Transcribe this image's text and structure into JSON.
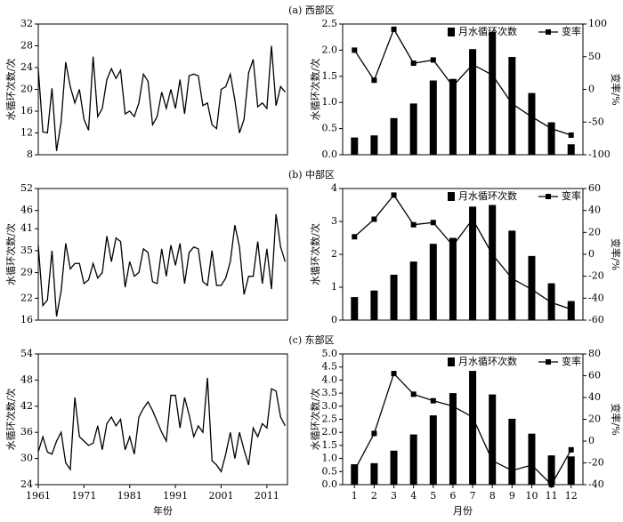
{
  "chart_data": [
    {
      "type": "line",
      "title": "(a) 西部区",
      "ylabel": "水循环次数/次",
      "color": "#000000",
      "x": [
        1961,
        1962,
        1963,
        1964,
        1965,
        1966,
        1967,
        1968,
        1969,
        1970,
        1971,
        1972,
        1973,
        1974,
        1975,
        1976,
        1977,
        1978,
        1979,
        1980,
        1981,
        1982,
        1983,
        1984,
        1985,
        1986,
        1987,
        1988,
        1989,
        1990,
        1991,
        1992,
        1993,
        1994,
        1995,
        1996,
        1997,
        1998,
        1999,
        2000,
        2001,
        2002,
        2003,
        2004,
        2005,
        2006,
        2007,
        2008,
        2009,
        2010,
        2011,
        2012,
        2013,
        2014,
        2015
      ],
      "values": [
        23.8,
        12.2,
        12,
        20.2,
        8.7,
        14,
        25,
        20.5,
        17.5,
        20,
        14.5,
        12.5,
        26,
        15,
        16.5,
        21.8,
        23.8,
        22,
        23.5,
        15.5,
        16,
        15,
        17.5,
        22.8,
        21.5,
        13.5,
        15,
        19.5,
        16.5,
        20,
        16.5,
        21.8,
        15.5,
        22.5,
        22.8,
        22.5,
        17,
        17.5,
        13.5,
        12.8,
        20,
        20.5,
        22.8,
        18,
        12,
        14.5,
        23,
        25.5,
        16.8,
        17.5,
        16.5,
        28,
        17,
        20.5,
        19.5
      ],
      "xlim": [
        1961,
        2015.5
      ],
      "ylim": [
        8,
        32
      ],
      "yticks": [
        8,
        12,
        16,
        20,
        24,
        28,
        32
      ]
    },
    {
      "type": "bar_line",
      "ylabel": "水循环次数/次",
      "y2label": "变率/%",
      "x": [
        1,
        2,
        3,
        4,
        5,
        6,
        7,
        8,
        9,
        10,
        11,
        12
      ],
      "series": [
        {
          "name": "月水循环次数",
          "color": "#000000",
          "values": [
            0.33,
            0.37,
            0.7,
            0.98,
            1.42,
            1.45,
            2.02,
            2.35,
            1.87,
            1.18,
            0.62,
            0.2
          ]
        },
        {
          "name": "变率",
          "color": "#000000",
          "axis": "y2",
          "values": [
            60,
            14,
            92,
            40,
            45,
            5,
            38,
            22,
            -22,
            -42,
            -60,
            -70
          ]
        }
      ],
      "xlim": [
        0.4,
        12.6
      ],
      "ylim": [
        0,
        2.5
      ],
      "yticks": [
        {
          "value": 0,
          "label": "0.0"
        },
        {
          "value": 0.5,
          "label": "0.5"
        },
        {
          "value": 1,
          "label": "1.0"
        },
        {
          "value": 1.5,
          "label": "1.5"
        },
        {
          "value": 2,
          "label": "2.0"
        },
        {
          "value": 2.5,
          "label": "2.5"
        }
      ],
      "y2lim": [
        -100,
        100
      ],
      "y2ticks": [
        -100,
        -50,
        0,
        50,
        100
      ]
    },
    {
      "type": "line",
      "title": "(b) 中部区",
      "ylabel": "水循环次数/次",
      "color": "#000000",
      "x": [
        1961,
        1962,
        1963,
        1964,
        1965,
        1966,
        1967,
        1968,
        1969,
        1970,
        1971,
        1972,
        1973,
        1974,
        1975,
        1976,
        1977,
        1978,
        1979,
        1980,
        1981,
        1982,
        1983,
        1984,
        1985,
        1986,
        1987,
        1988,
        1989,
        1990,
        1991,
        1992,
        1993,
        1994,
        1995,
        1996,
        1997,
        1998,
        1999,
        2000,
        2001,
        2002,
        2003,
        2004,
        2005,
        2006,
        2007,
        2008,
        2009,
        2010,
        2011,
        2012,
        2013,
        2014,
        2015
      ],
      "values": [
        36.5,
        20,
        21.5,
        35,
        17,
        24,
        37,
        30,
        31.5,
        31.5,
        26,
        27,
        31.5,
        27.5,
        29,
        39,
        32,
        38.5,
        37.5,
        25,
        32,
        28,
        29,
        35.5,
        34.5,
        26.5,
        26,
        35.5,
        28,
        36.5,
        31,
        37,
        26,
        34.5,
        36,
        35.5,
        26.5,
        25.5,
        35,
        25.5,
        25.5,
        27.5,
        32,
        42,
        36,
        23,
        28,
        28,
        37.5,
        26,
        35.5,
        24.5,
        45,
        36,
        32
      ],
      "xlim": [
        1961,
        2015.5
      ],
      "ylim": [
        16,
        52
      ],
      "yticks": [
        16,
        22,
        29,
        35,
        41,
        46,
        52
      ]
    },
    {
      "type": "bar_line",
      "ylabel": "水循环次数/次",
      "y2label": "变率/%",
      "x": [
        1,
        2,
        3,
        4,
        5,
        6,
        7,
        8,
        9,
        10,
        11,
        12
      ],
      "series": [
        {
          "name": "月水循环次数",
          "color": "#000000",
          "values": [
            0.7,
            0.9,
            1.38,
            1.78,
            2.32,
            2.5,
            3.45,
            3.5,
            2.72,
            1.95,
            1.12,
            0.58
          ]
        },
        {
          "name": "变率",
          "color": "#000000",
          "axis": "y2",
          "values": [
            16,
            32,
            54,
            27,
            29,
            8,
            32,
            0,
            -22,
            -32,
            -44,
            -50
          ]
        }
      ],
      "xlim": [
        0.4,
        12.6
      ],
      "ylim": [
        0,
        4
      ],
      "yticks": [
        0,
        1,
        2,
        3,
        4
      ],
      "y2lim": [
        -60,
        60
      ],
      "y2ticks": [
        -60,
        -40,
        -20,
        0,
        20,
        40,
        60
      ]
    },
    {
      "type": "line",
      "title": "(c) 东部区",
      "ylabel": "水循环次数/次",
      "xlabel": "年份",
      "color": "#000000",
      "x": [
        1961,
        1962,
        1963,
        1964,
        1965,
        1966,
        1967,
        1968,
        1969,
        1970,
        1971,
        1972,
        1973,
        1974,
        1975,
        1976,
        1977,
        1978,
        1979,
        1980,
        1981,
        1982,
        1983,
        1984,
        1985,
        1986,
        1987,
        1988,
        1989,
        1990,
        1991,
        1992,
        1993,
        1994,
        1995,
        1996,
        1997,
        1998,
        1999,
        2000,
        2001,
        2002,
        2003,
        2004,
        2005,
        2006,
        2007,
        2008,
        2009,
        2010,
        2011,
        2012,
        2013,
        2014,
        2015
      ],
      "values": [
        31.5,
        35,
        31.5,
        31,
        34,
        36,
        29,
        27.5,
        44,
        35,
        34,
        33,
        33.5,
        37.5,
        32,
        38,
        39.5,
        37.5,
        39,
        32,
        35,
        31,
        39.5,
        41.5,
        43,
        41,
        38.5,
        36,
        34,
        44.5,
        44.5,
        37,
        44,
        40,
        35,
        37.5,
        36,
        48.5,
        29.5,
        28.5,
        27,
        31,
        36,
        30,
        36,
        32,
        28.5,
        37,
        35,
        38,
        37,
        46,
        45.5,
        39.5,
        37.5
      ],
      "xlim": [
        1961,
        2015.5
      ],
      "xticks": [
        1961,
        1971,
        1981,
        1991,
        2001,
        2011
      ],
      "ylim": [
        24,
        54
      ],
      "yticks": [
        24,
        30,
        36,
        42,
        48,
        54
      ]
    },
    {
      "type": "bar_line",
      "ylabel": "水循环次数/次",
      "y2label": "变率/%",
      "xlabel": "月份",
      "x": [
        1,
        2,
        3,
        4,
        5,
        6,
        7,
        8,
        9,
        10,
        11,
        12
      ],
      "series": [
        {
          "name": "月水循环次数",
          "color": "#000000",
          "values": [
            0.78,
            0.82,
            1.3,
            1.92,
            2.65,
            3.5,
            4.35,
            3.45,
            2.52,
            1.95,
            1.12,
            1.08
          ]
        },
        {
          "name": "变率",
          "color": "#000000",
          "axis": "y2",
          "values": [
            -27,
            7,
            62,
            43,
            37,
            32,
            22,
            -18,
            -27,
            -22,
            -40,
            -8
          ]
        }
      ],
      "xlim": [
        0.4,
        12.6
      ],
      "xticks": [
        1,
        2,
        3,
        4,
        5,
        6,
        7,
        8,
        9,
        10,
        11,
        12
      ],
      "ylim": [
        0,
        5
      ],
      "yticks": [
        {
          "value": 0,
          "label": "0.0"
        },
        {
          "value": 0.5,
          "label": "0.5"
        },
        {
          "value": 1,
          "label": "1.0"
        },
        {
          "value": 1.5,
          "label": "1.5"
        },
        {
          "value": 2,
          "label": "2.0"
        },
        {
          "value": 2.5,
          "label": "2.5"
        },
        {
          "value": 3,
          "label": "3.0"
        },
        {
          "value": 3.5,
          "label": "3.5"
        },
        {
          "value": 4,
          "label": "4.0"
        },
        {
          "value": 4.5,
          "label": "4.5"
        },
        {
          "value": 5,
          "label": "5.0"
        }
      ],
      "y2lim": [
        -40,
        80
      ],
      "y2ticks": [
        -40,
        -20,
        0,
        20,
        40,
        60,
        80
      ]
    }
  ]
}
